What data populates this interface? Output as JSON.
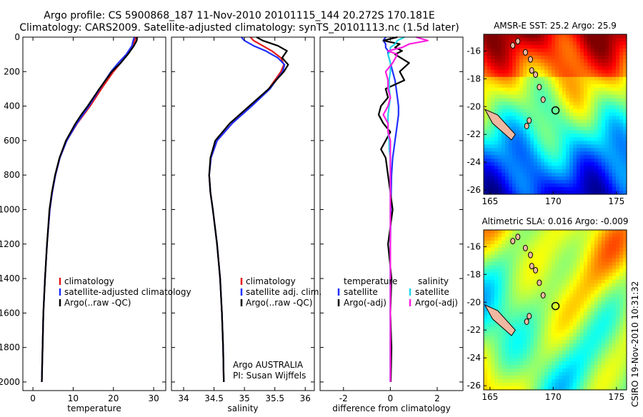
{
  "header": {
    "line1": "Argo profile: CS 5900868_187 11-Nov-2010 20101115_144 20.272S 170.181E",
    "line2": "Climatology: CARS2009. Satellite-adjusted climatology: synTS_20101113.nc (1.5d later)"
  },
  "side_stamp": "CSIRO 19-Nov-2010 10:31:32",
  "colors": {
    "climatology": "#e41a1c",
    "satellite": "#1f2fff",
    "argo": "#000000",
    "sat_salinity": "#22d8e8",
    "argo_salinity": "#ff1fe0",
    "axis": "#000000"
  },
  "chart_data": [
    {
      "id": "temperature",
      "type": "line",
      "xlabel": "temperature",
      "ylabel": "",
      "xlim": [
        -2.5,
        33
      ],
      "ylim": [
        2050,
        0
      ],
      "xticks": [
        "0",
        "10",
        "20",
        "30"
      ],
      "yticks": [
        "0",
        "200",
        "400",
        "600",
        "800",
        "1000",
        "1200",
        "1400",
        "1600",
        "1800",
        "2000"
      ],
      "legend": [
        "climatology",
        "satellite-adjusted climatology",
        "Argo(..raw -QC)"
      ],
      "depth": [
        0,
        20,
        50,
        100,
        150,
        200,
        300,
        400,
        450,
        500,
        600,
        700,
        800,
        900,
        1000,
        1200,
        1400,
        1600,
        1800,
        2000
      ],
      "series": [
        {
          "name": "climatology",
          "values": [
            25.6,
            25.3,
            24.8,
            23.4,
            21.8,
            20.0,
            17.0,
            14.2,
            12.6,
            11.0,
            8.4,
            6.7,
            5.6,
            4.8,
            4.2,
            3.5,
            3.0,
            2.6,
            2.4,
            2.2
          ]
        },
        {
          "name": "satellite-adjusted climatology",
          "values": [
            25.2,
            24.9,
            24.6,
            23.2,
            21.2,
            19.4,
            16.6,
            13.9,
            12.4,
            10.9,
            8.4,
            6.7,
            5.6,
            4.8,
            4.2,
            3.5,
            3.0,
            2.6,
            2.4,
            2.2
          ]
        },
        {
          "name": "Argo(..raw -QC)",
          "values": [
            25.9,
            25.8,
            25.1,
            23.6,
            21.8,
            19.6,
            16.5,
            13.6,
            12.0,
            10.6,
            8.2,
            6.6,
            5.5,
            4.7,
            4.1,
            3.5,
            3.0,
            2.6,
            2.4,
            2.2
          ]
        }
      ]
    },
    {
      "id": "salinity",
      "type": "line",
      "xlabel": "salinity",
      "ylabel": "",
      "xlim": [
        33.8,
        36.15
      ],
      "ylim": [
        2050,
        0
      ],
      "xticks": [
        "34",
        "34.5",
        "35",
        "35.5",
        "36"
      ],
      "legend": [
        "climatology",
        "satellite adj. clim.",
        "Argo(..raw -QC)"
      ],
      "annotation": [
        "Argo AUSTRALIA",
        "PI: Susan Wijffels"
      ],
      "depth": [
        0,
        20,
        50,
        80,
        120,
        160,
        200,
        250,
        300,
        400,
        500,
        600,
        700,
        800,
        900,
        1000,
        1200,
        1400,
        1600,
        1800,
        2000
      ],
      "series": [
        {
          "name": "climatology",
          "values": [
            35.1,
            35.15,
            35.3,
            35.45,
            35.6,
            35.65,
            35.6,
            35.5,
            35.4,
            35.1,
            34.8,
            34.55,
            34.45,
            34.42,
            34.44,
            34.48,
            34.55,
            34.6,
            34.63,
            34.65,
            34.66
          ]
        },
        {
          "name": "satellite adj. clim.",
          "values": [
            34.95,
            35.0,
            35.15,
            35.35,
            35.55,
            35.66,
            35.63,
            35.52,
            35.42,
            35.12,
            34.8,
            34.55,
            34.45,
            34.42,
            34.44,
            34.48,
            34.55,
            34.6,
            34.63,
            34.65,
            34.66
          ]
        },
        {
          "name": "Argo(..raw -QC)",
          "values": [
            35.2,
            35.3,
            35.55,
            35.7,
            35.62,
            35.72,
            35.65,
            35.52,
            35.4,
            35.08,
            34.76,
            34.52,
            34.44,
            34.42,
            34.44,
            34.48,
            34.55,
            34.6,
            34.63,
            34.65,
            34.66
          ]
        }
      ]
    },
    {
      "id": "difference",
      "type": "line",
      "xlabel": "difference from climatology",
      "ylabel": "",
      "xlim": [
        -3,
        3.1
      ],
      "ylim": [
        2050,
        0
      ],
      "xticks": [
        "-2",
        "0",
        "2"
      ],
      "legend_left_title": "temperature",
      "legend_right_title": "salinity",
      "legend": [
        "satellite",
        "Argo(-adj)",
        "satellite",
        "Argo(-adj)"
      ],
      "depth": [
        0,
        20,
        40,
        60,
        80,
        100,
        150,
        200,
        250,
        300,
        350,
        400,
        450,
        500,
        550,
        600,
        650,
        700,
        800,
        1000,
        1200,
        1400,
        1600,
        1800,
        2000
      ],
      "series": [
        {
          "name": "temperature satellite",
          "values": [
            -0.2,
            -0.3,
            -0.2,
            -0.2,
            -0.1,
            -0.1,
            0.0,
            0.1,
            0.2,
            0.25,
            0.3,
            0.35,
            0.35,
            0.3,
            0.25,
            0.2,
            0.15,
            0.1,
            0.05,
            0.02,
            0.0,
            0.0,
            0.0,
            0.0,
            0.0
          ]
        },
        {
          "name": "temperature Argo(-adj)",
          "values": [
            0.3,
            -0.3,
            0.4,
            0.2,
            0.5,
            0.2,
            0.8,
            0.4,
            0.6,
            -0.2,
            -0.1,
            -0.4,
            -0.5,
            -0.3,
            0.0,
            -0.2,
            -0.4,
            -0.2,
            -0.1,
            0.1,
            -0.1,
            0.05,
            0.0,
            0.05,
            0.02
          ]
        },
        {
          "name": "salinity satellite",
          "values": [
            0.6,
            0.3,
            0.2,
            0.0,
            0.0,
            -0.1,
            0.0,
            0.0,
            -0.05,
            -0.05,
            0.0,
            -0.05,
            -0.1,
            -0.1,
            -0.1,
            -0.05,
            -0.05,
            0.0,
            0.0,
            0.0,
            0.0,
            0.0,
            0.0,
            0.0,
            0.0
          ]
        },
        {
          "name": "salinity Argo(-adj)",
          "values": [
            1.1,
            1.6,
            0.8,
            0.5,
            -0.1,
            0.3,
            0.1,
            -0.2,
            -0.1,
            -0.1,
            0.0,
            -0.1,
            -0.3,
            -0.1,
            -0.1,
            0.0,
            0.0,
            0.0,
            0.0,
            0.0,
            0.0,
            0.0,
            0.0,
            0.0,
            0.0
          ]
        }
      ]
    },
    {
      "id": "sst_map",
      "type": "heatmap",
      "title": "AMSR-E SST: 25.2 Argo: 25.9",
      "xticks": [
        "165",
        "170",
        "175"
      ],
      "yticks": [
        "-16",
        "-18",
        "-20",
        "-22",
        "-24",
        "-26"
      ],
      "xlim": [
        164.5,
        175.8
      ],
      "ylim": [
        -26.3,
        -14.8
      ],
      "marker": {
        "lon": 170.181,
        "lat": -20.272
      }
    },
    {
      "id": "sla_map",
      "type": "heatmap",
      "title": "Altimetric SLA: 0.016 Argo: -0.009",
      "xticks": [
        "165",
        "170",
        "175"
      ],
      "yticks": [
        "-16",
        "-18",
        "-20",
        "-22",
        "-24",
        "-26"
      ],
      "xlim": [
        164.5,
        175.8
      ],
      "ylim": [
        -26.3,
        -14.8
      ],
      "marker": {
        "lon": 170.181,
        "lat": -20.272
      }
    }
  ]
}
